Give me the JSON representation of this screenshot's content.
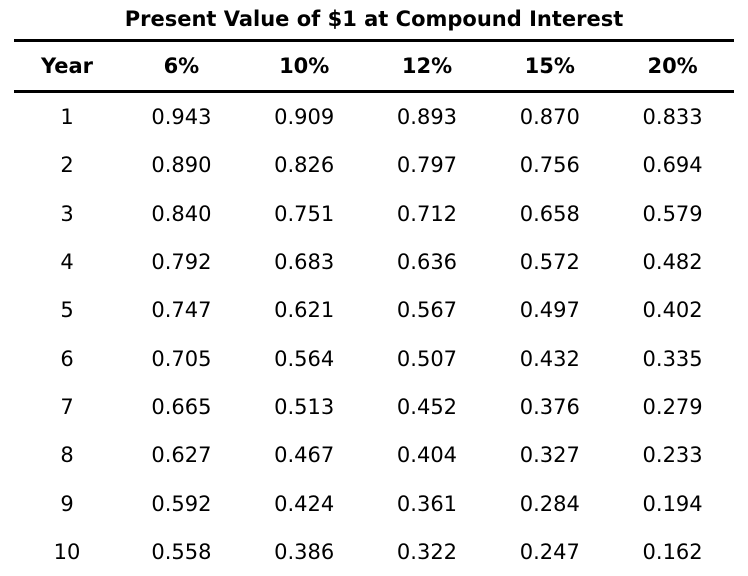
{
  "page": {
    "background_color": "#ffffff",
    "text_color": "#000000",
    "rule_color": "#000000"
  },
  "chart_data": {
    "type": "table",
    "title": "Present Value of $1 at Compound Interest",
    "columns": [
      "Year",
      "6%",
      "10%",
      "12%",
      "15%",
      "20%"
    ],
    "rows": [
      [
        "1",
        "0.943",
        "0.909",
        "0.893",
        "0.870",
        "0.833"
      ],
      [
        "2",
        "0.890",
        "0.826",
        "0.797",
        "0.756",
        "0.694"
      ],
      [
        "3",
        "0.840",
        "0.751",
        "0.712",
        "0.658",
        "0.579"
      ],
      [
        "4",
        "0.792",
        "0.683",
        "0.636",
        "0.572",
        "0.482"
      ],
      [
        "5",
        "0.747",
        "0.621",
        "0.567",
        "0.497",
        "0.402"
      ],
      [
        "6",
        "0.705",
        "0.564",
        "0.507",
        "0.432",
        "0.335"
      ],
      [
        "7",
        "0.665",
        "0.513",
        "0.452",
        "0.376",
        "0.279"
      ],
      [
        "8",
        "0.627",
        "0.467",
        "0.404",
        "0.327",
        "0.233"
      ],
      [
        "9",
        "0.592",
        "0.424",
        "0.361",
        "0.284",
        "0.194"
      ],
      [
        "10",
        "0.558",
        "0.386",
        "0.322",
        "0.247",
        "0.162"
      ]
    ]
  }
}
